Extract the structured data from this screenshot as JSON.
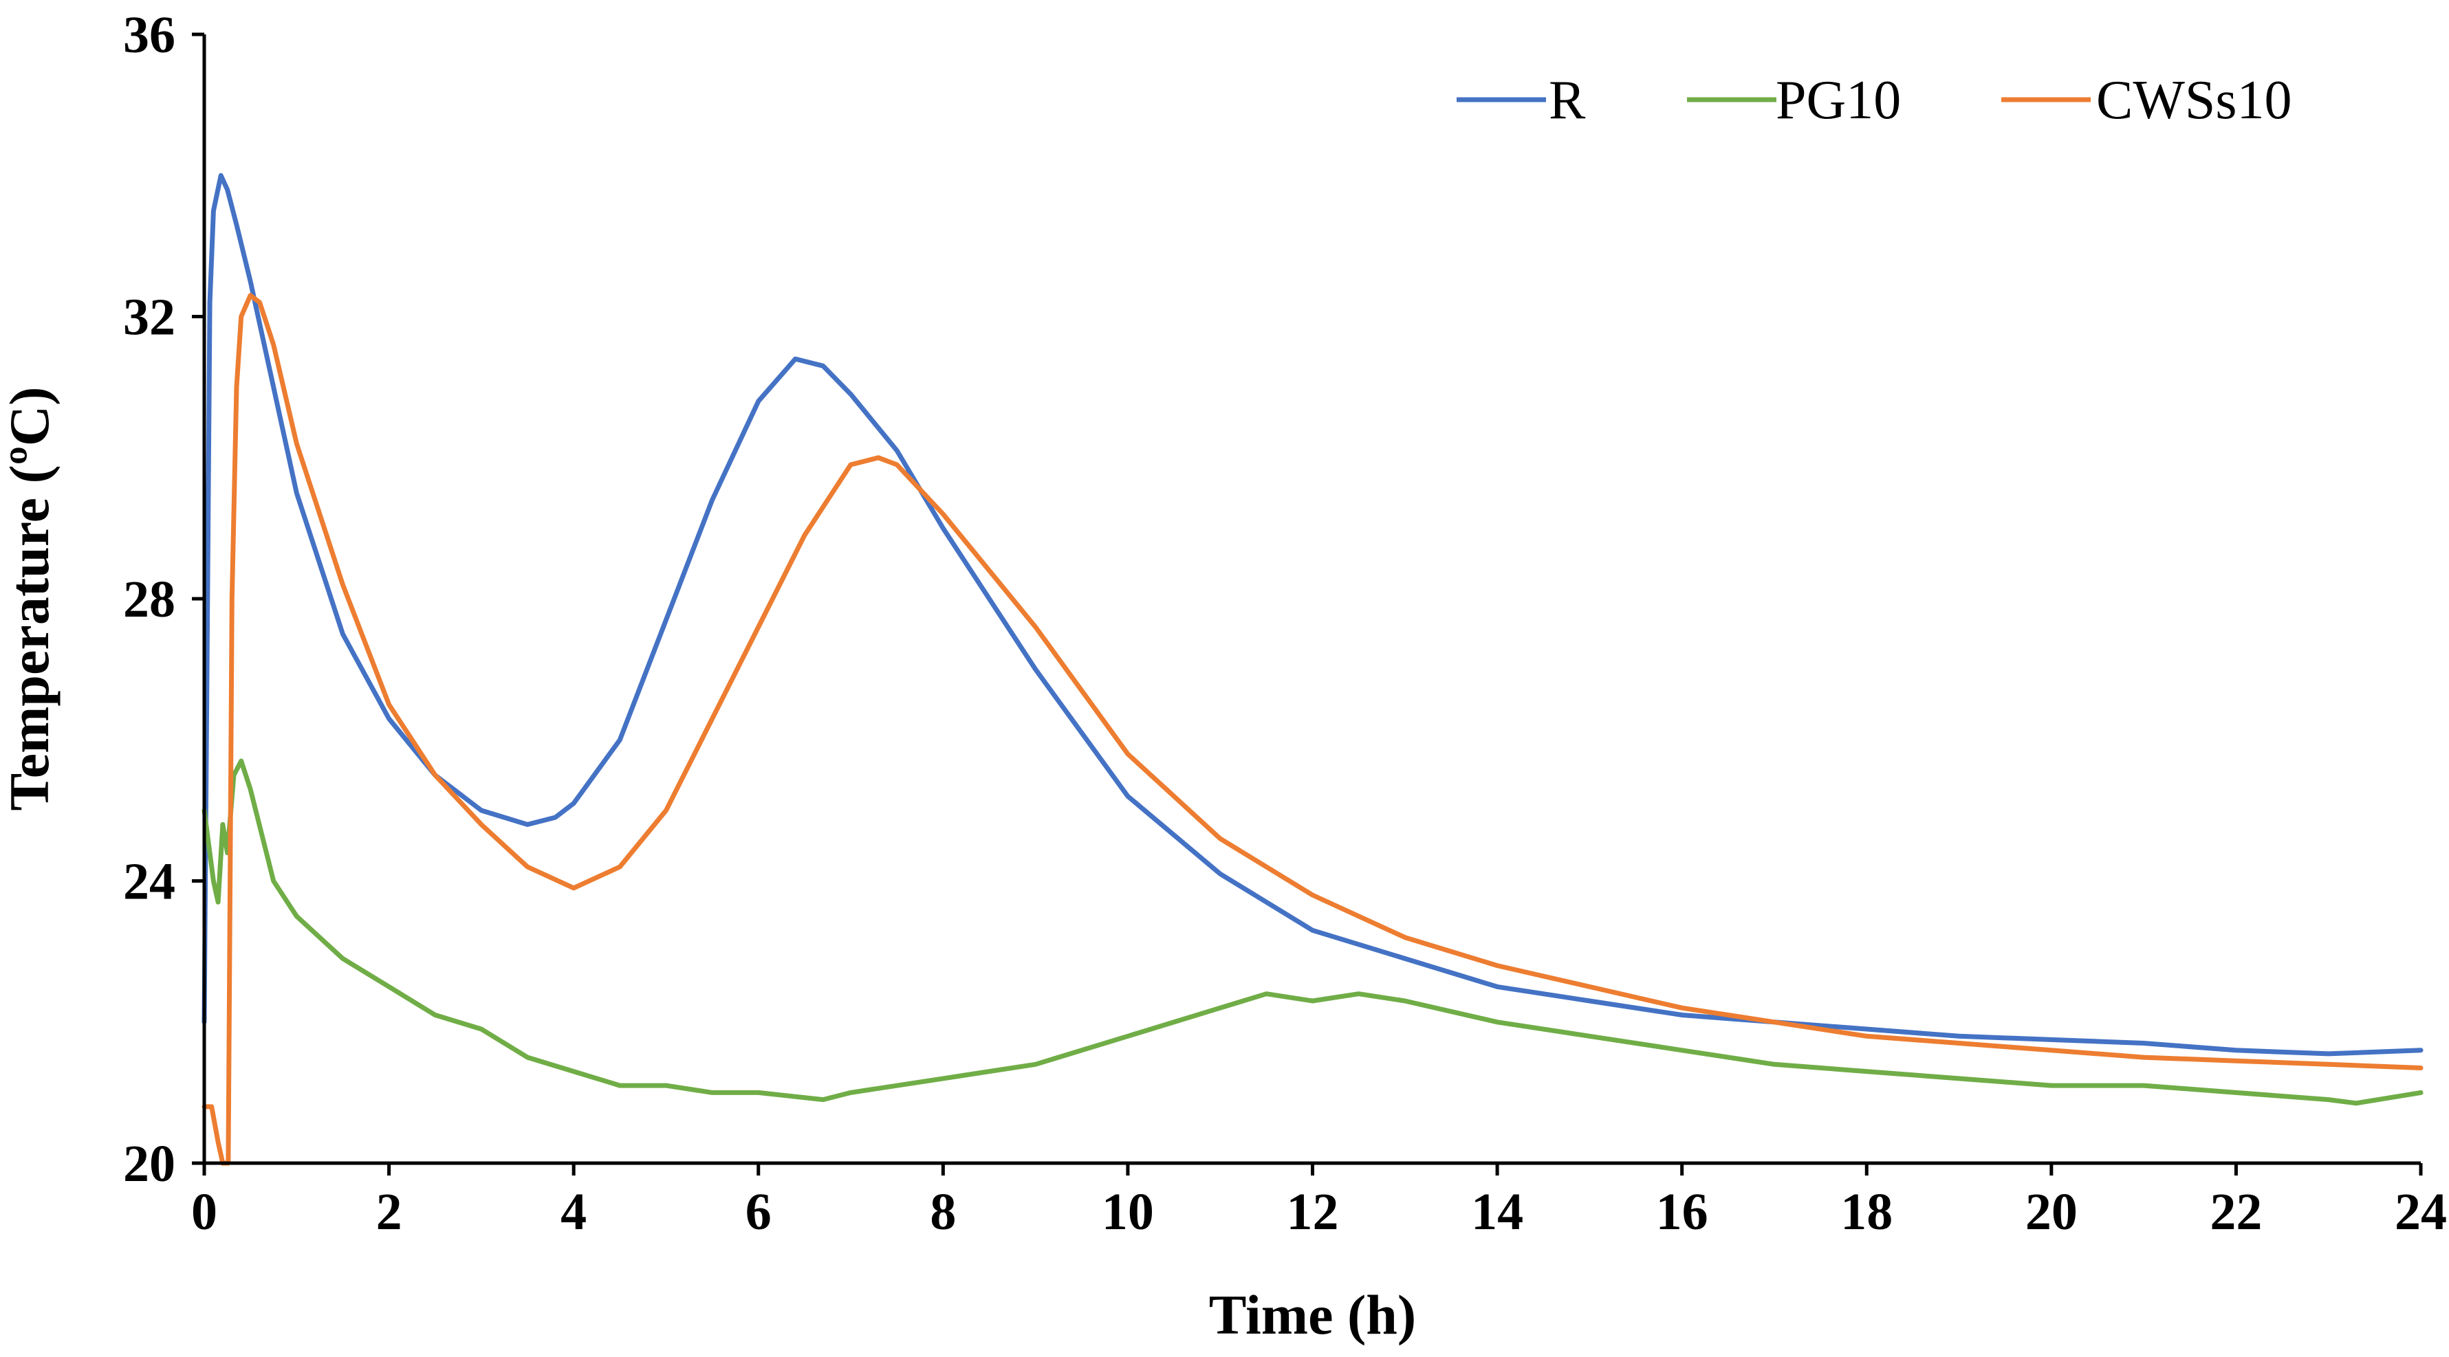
{
  "chart_data": {
    "type": "line",
    "title": "",
    "xlabel": "Time (h)",
    "ylabel": "Temperature (ºC)",
    "xlim": [
      0,
      24
    ],
    "ylim": [
      20,
      36
    ],
    "xticks": [
      0,
      2,
      4,
      6,
      8,
      10,
      12,
      14,
      16,
      18,
      20,
      22,
      24
    ],
    "yticks": [
      20,
      24,
      28,
      32,
      36
    ],
    "grid": false,
    "legend_position": "top-right",
    "series": [
      {
        "name": "R",
        "color": "#4472C4",
        "points": [
          [
            0,
            22.0
          ],
          [
            0.03,
            27.0
          ],
          [
            0.06,
            32.2
          ],
          [
            0.1,
            33.5
          ],
          [
            0.18,
            34.0
          ],
          [
            0.25,
            33.8
          ],
          [
            0.35,
            33.3
          ],
          [
            0.5,
            32.5
          ],
          [
            0.75,
            31.0
          ],
          [
            1.0,
            29.5
          ],
          [
            1.5,
            27.5
          ],
          [
            2.0,
            26.3
          ],
          [
            2.5,
            25.5
          ],
          [
            3.0,
            25.0
          ],
          [
            3.5,
            24.8
          ],
          [
            3.8,
            24.9
          ],
          [
            4.0,
            25.1
          ],
          [
            4.5,
            26.0
          ],
          [
            5.0,
            27.7
          ],
          [
            5.5,
            29.4
          ],
          [
            6.0,
            30.8
          ],
          [
            6.4,
            31.4
          ],
          [
            6.7,
            31.3
          ],
          [
            7.0,
            30.9
          ],
          [
            7.5,
            30.1
          ],
          [
            8.0,
            29.0
          ],
          [
            9.0,
            27.0
          ],
          [
            10.0,
            25.2
          ],
          [
            11.0,
            24.1
          ],
          [
            12.0,
            23.3
          ],
          [
            13.0,
            22.9
          ],
          [
            14.0,
            22.5
          ],
          [
            15.0,
            22.3
          ],
          [
            16.0,
            22.1
          ],
          [
            17.0,
            22.0
          ],
          [
            18.0,
            21.9
          ],
          [
            19.0,
            21.8
          ],
          [
            20.0,
            21.75
          ],
          [
            21.0,
            21.7
          ],
          [
            22.0,
            21.6
          ],
          [
            23.0,
            21.55
          ],
          [
            24.0,
            21.6
          ]
        ]
      },
      {
        "name": "PG10",
        "color": "#70AD47",
        "points": [
          [
            0,
            25.0
          ],
          [
            0.05,
            24.5
          ],
          [
            0.1,
            24.0
          ],
          [
            0.15,
            23.7
          ],
          [
            0.2,
            24.8
          ],
          [
            0.25,
            24.4
          ],
          [
            0.32,
            25.5
          ],
          [
            0.4,
            25.7
          ],
          [
            0.5,
            25.3
          ],
          [
            0.75,
            24.0
          ],
          [
            1.0,
            23.5
          ],
          [
            1.5,
            22.9
          ],
          [
            2.0,
            22.5
          ],
          [
            2.5,
            22.1
          ],
          [
            3.0,
            21.9
          ],
          [
            3.5,
            21.5
          ],
          [
            4.0,
            21.3
          ],
          [
            4.5,
            21.1
          ],
          [
            5.0,
            21.1
          ],
          [
            5.5,
            21.0
          ],
          [
            6.0,
            21.0
          ],
          [
            6.7,
            20.9
          ],
          [
            7.0,
            21.0
          ],
          [
            8.0,
            21.2
          ],
          [
            9.0,
            21.4
          ],
          [
            10.0,
            21.8
          ],
          [
            11.0,
            22.2
          ],
          [
            11.5,
            22.4
          ],
          [
            12.0,
            22.3
          ],
          [
            12.5,
            22.4
          ],
          [
            13.0,
            22.3
          ],
          [
            14.0,
            22.0
          ],
          [
            15.0,
            21.8
          ],
          [
            16.0,
            21.6
          ],
          [
            17.0,
            21.4
          ],
          [
            18.0,
            21.3
          ],
          [
            19.0,
            21.2
          ],
          [
            20.0,
            21.1
          ],
          [
            21.0,
            21.1
          ],
          [
            22.0,
            21.0
          ],
          [
            23.0,
            20.9
          ],
          [
            23.3,
            20.85
          ],
          [
            24.0,
            21.0
          ]
        ]
      },
      {
        "name": "CWSs10",
        "color": "#ED7D31",
        "points": [
          [
            0,
            20.8
          ],
          [
            0.08,
            20.8
          ],
          [
            0.15,
            20.3
          ],
          [
            0.2,
            20.0
          ],
          [
            0.26,
            20.0
          ],
          [
            0.28,
            24.0
          ],
          [
            0.3,
            28.0
          ],
          [
            0.35,
            31.0
          ],
          [
            0.4,
            32.0
          ],
          [
            0.5,
            32.3
          ],
          [
            0.6,
            32.2
          ],
          [
            0.75,
            31.6
          ],
          [
            1.0,
            30.2
          ],
          [
            1.5,
            28.2
          ],
          [
            2.0,
            26.5
          ],
          [
            2.5,
            25.5
          ],
          [
            3.0,
            24.8
          ],
          [
            3.5,
            24.2
          ],
          [
            4.0,
            23.9
          ],
          [
            4.5,
            24.2
          ],
          [
            5.0,
            25.0
          ],
          [
            5.5,
            26.3
          ],
          [
            6.0,
            27.6
          ],
          [
            6.5,
            28.9
          ],
          [
            7.0,
            29.9
          ],
          [
            7.3,
            30.0
          ],
          [
            7.5,
            29.9
          ],
          [
            8.0,
            29.2
          ],
          [
            9.0,
            27.6
          ],
          [
            10.0,
            25.8
          ],
          [
            11.0,
            24.6
          ],
          [
            12.0,
            23.8
          ],
          [
            13.0,
            23.2
          ],
          [
            14.0,
            22.8
          ],
          [
            15.0,
            22.5
          ],
          [
            16.0,
            22.2
          ],
          [
            17.0,
            22.0
          ],
          [
            18.0,
            21.8
          ],
          [
            19.0,
            21.7
          ],
          [
            20.0,
            21.6
          ],
          [
            21.0,
            21.5
          ],
          [
            22.0,
            21.45
          ],
          [
            23.0,
            21.4
          ],
          [
            24.0,
            21.35
          ]
        ]
      }
    ]
  }
}
